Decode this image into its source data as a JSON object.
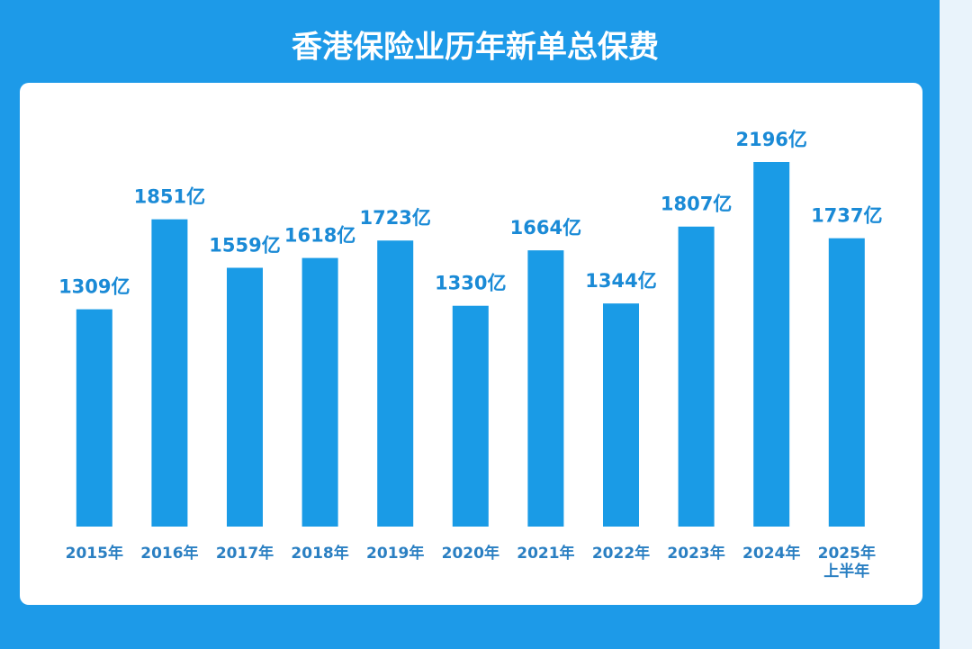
{
  "chart_data": {
    "type": "bar",
    "title": "香港保险业历年新单总保费",
    "categories": [
      "2015年",
      "2016年",
      "2017年",
      "2018年",
      "2019年",
      "2020年",
      "2021年",
      "2022年",
      "2023年",
      "2024年",
      "2025年\n上半年"
    ],
    "values": [
      1309,
      1851,
      1559,
      1618,
      1723,
      1330,
      1664,
      1344,
      1807,
      2196,
      1737
    ],
    "value_labels": [
      "1309亿",
      "1851亿",
      "1559亿",
      "1618亿",
      "1723亿",
      "1330亿",
      "1664亿",
      "1344亿",
      "1807亿",
      "2196亿",
      "1737亿"
    ],
    "color": "#1a9be6"
  }
}
